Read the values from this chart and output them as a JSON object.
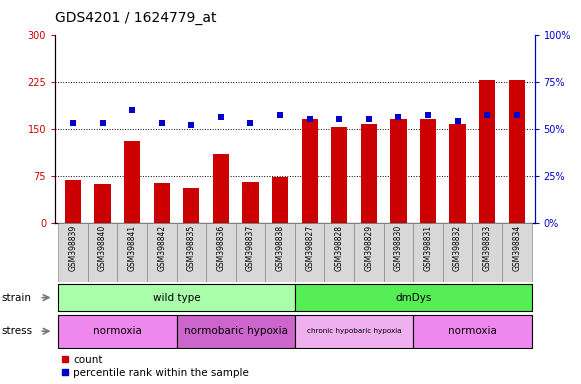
{
  "title": "GDS4201 / 1624779_at",
  "samples": [
    "GSM398839",
    "GSM398840",
    "GSM398841",
    "GSM398842",
    "GSM398835",
    "GSM398836",
    "GSM398837",
    "GSM398838",
    "GSM398827",
    "GSM398828",
    "GSM398829",
    "GSM398830",
    "GSM398831",
    "GSM398832",
    "GSM398833",
    "GSM398834"
  ],
  "counts": [
    68,
    62,
    130,
    63,
    55,
    110,
    65,
    73,
    165,
    152,
    157,
    165,
    165,
    158,
    228,
    228
  ],
  "percentile_ranks": [
    53,
    53,
    60,
    53,
    52,
    56,
    53,
    57,
    55,
    55,
    55,
    56,
    57,
    54,
    57,
    57
  ],
  "count_color": "#cc0000",
  "percentile_color": "#0000cc",
  "ylim_left": [
    0,
    300
  ],
  "ylim_right": [
    0,
    100
  ],
  "yticks_left": [
    0,
    75,
    150,
    225,
    300
  ],
  "ytick_labels_left": [
    "0",
    "75",
    "150",
    "225",
    "300"
  ],
  "yticks_right": [
    0,
    25,
    50,
    75,
    100
  ],
  "ytick_labels_right": [
    "0%",
    "25%",
    "50%",
    "75%",
    "100%"
  ],
  "grid_yticks": [
    75,
    150,
    225
  ],
  "strain_groups": [
    {
      "label": "wild type",
      "start": 0,
      "end": 8,
      "color": "#aaffaa"
    },
    {
      "label": "dmDys",
      "start": 8,
      "end": 16,
      "color": "#55ee55"
    }
  ],
  "stress_groups": [
    {
      "label": "normoxia",
      "start": 0,
      "end": 4,
      "color": "#ee88ee"
    },
    {
      "label": "normobaric hypoxia",
      "start": 4,
      "end": 8,
      "color": "#cc66cc"
    },
    {
      "label": "chronic hypobaric hypoxia",
      "start": 8,
      "end": 12,
      "color": "#f0b0f0"
    },
    {
      "label": "normoxia",
      "start": 12,
      "end": 16,
      "color": "#ee88ee"
    }
  ],
  "bar_width": 0.55,
  "marker_size": 5,
  "background_color": "#ffffff",
  "plot_bg_color": "#ffffff",
  "title_fontsize": 10,
  "tick_fontsize": 7,
  "label_fontsize": 7.5,
  "sample_fontsize": 5.5,
  "legend_fontsize": 7.5
}
